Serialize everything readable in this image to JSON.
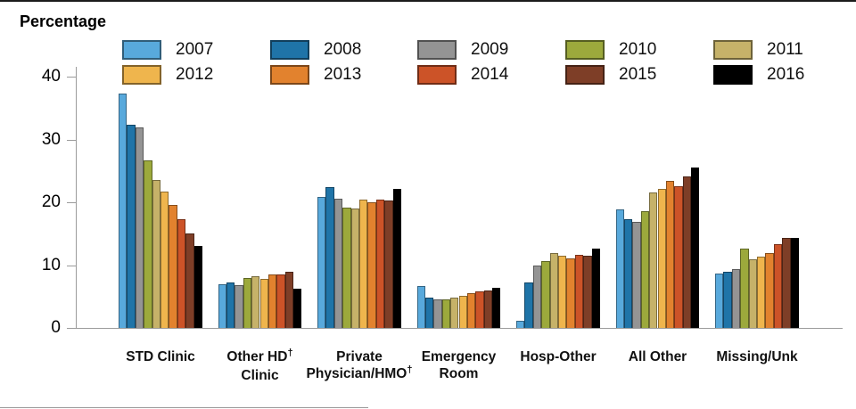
{
  "chart_data": {
    "type": "bar",
    "title": "Percentage",
    "ylabel": "Percentage",
    "xlabel": "",
    "ylim": [
      0,
      40
    ],
    "yticks": [
      0,
      10,
      20,
      30,
      40
    ],
    "grid": false,
    "legend_position": "top",
    "legend_rows": 2,
    "axis_color": "#9b9b9b",
    "categories": [
      {
        "lines": [
          "STD Clinic"
        ]
      },
      {
        "lines": [
          "Other HD†",
          "Clinic"
        ]
      },
      {
        "lines": [
          "Private",
          "Physician/HMO†"
        ]
      },
      {
        "lines": [
          "Emergency",
          "Room"
        ]
      },
      {
        "lines": [
          "Hosp-Other"
        ]
      },
      {
        "lines": [
          "All Other"
        ]
      },
      {
        "lines": [
          "Missing/Unk"
        ]
      }
    ],
    "series": [
      {
        "name": "2007",
        "color": "#58A9DC",
        "values": [
          37.3,
          7.0,
          20.9,
          6.7,
          1.2,
          18.9,
          8.7
        ]
      },
      {
        "name": "2008",
        "color": "#1F74A8",
        "values": [
          32.3,
          7.2,
          22.4,
          4.9,
          7.2,
          17.3,
          9.0
        ]
      },
      {
        "name": "2009",
        "color": "#949494",
        "values": [
          31.9,
          6.8,
          20.6,
          4.6,
          9.9,
          16.9,
          9.3
        ]
      },
      {
        "name": "2010",
        "color": "#9CA93C",
        "values": [
          26.7,
          7.9,
          19.2,
          4.6,
          10.6,
          18.6,
          12.6
        ]
      },
      {
        "name": "2011",
        "color": "#C6B269",
        "values": [
          23.6,
          8.3,
          19.0,
          4.8,
          11.9,
          21.5,
          10.9
        ]
      },
      {
        "name": "2012",
        "color": "#EFB54D",
        "values": [
          21.7,
          7.8,
          20.4,
          5.1,
          11.5,
          22.2,
          11.4
        ]
      },
      {
        "name": "2013",
        "color": "#E2822E",
        "values": [
          19.6,
          8.5,
          20.0,
          5.5,
          11.0,
          23.4,
          11.9
        ]
      },
      {
        "name": "2014",
        "color": "#CC5328",
        "values": [
          17.3,
          8.5,
          20.4,
          5.8,
          11.7,
          22.5,
          13.4
        ]
      },
      {
        "name": "2015",
        "color": "#7E3E27",
        "values": [
          15.0,
          8.9,
          20.3,
          6.0,
          11.5,
          24.1,
          14.4
        ]
      },
      {
        "name": "2016",
        "color": "#000000",
        "values": [
          13.0,
          6.2,
          22.2,
          6.4,
          12.6,
          25.6,
          14.3
        ]
      }
    ]
  }
}
